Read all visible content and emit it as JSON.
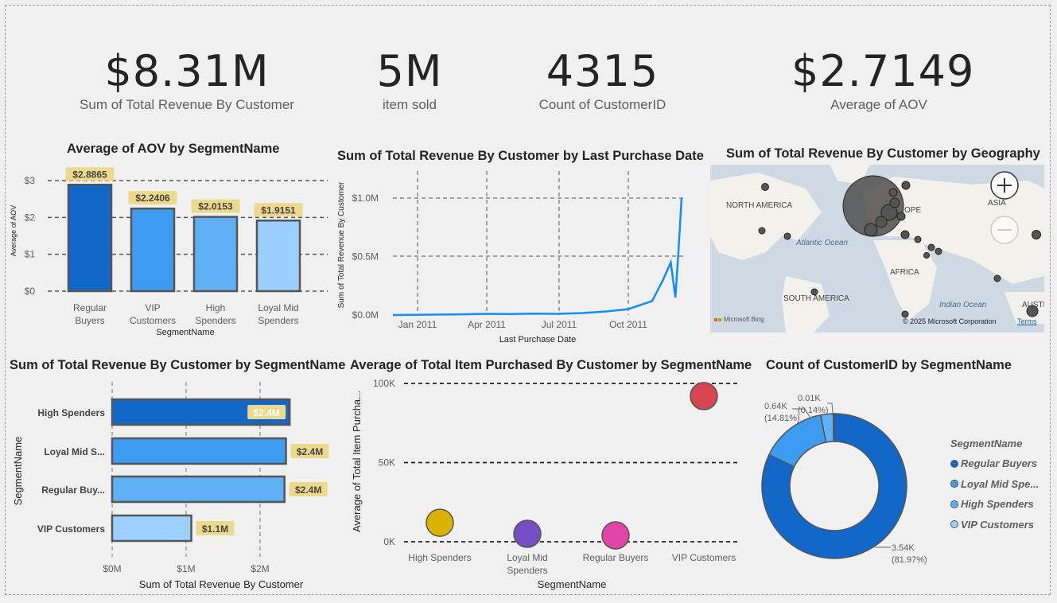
{
  "kpis": [
    {
      "value": "$8.31M",
      "label": "Sum of Total Revenue By Customer"
    },
    {
      "value": "5M",
      "label": "item sold"
    },
    {
      "value": "4315",
      "label": "Count of CustomerID"
    },
    {
      "value": "$2.7149",
      "label": "Average of AOV"
    }
  ],
  "map": {
    "title": "Sum of Total Revenue By Customer by Geography",
    "labels": {
      "north_america": "NORTH AMERICA",
      "atlantic": "Atlantic Ocean",
      "europe": "OPE",
      "asia": "ASIA",
      "africa": "AFRICA",
      "south_america": "SOUTH AMERICA",
      "indian": "Indian Ocean",
      "austr": "AUSTR"
    },
    "attribution": "Microsoft Bing",
    "copyright": "© 2025 Microsoft Corporation",
    "terms": "Terms",
    "zoom_in_icon": "plus-icon",
    "zoom_out_icon": "minus-icon"
  },
  "chart_data": [
    {
      "type": "bar",
      "title": "Average of AOV by SegmentName",
      "xlabel": "SegmentName",
      "ylabel": "Average of AOV",
      "categories": [
        "Regular Buyers",
        "VIP Customers",
        "High Spenders",
        "Loyal Mid Spenders"
      ],
      "values": [
        2.8865,
        2.2406,
        2.0153,
        1.9151
      ],
      "data_labels": [
        "$2.8865",
        "$2.2406",
        "$2.0153",
        "$1.9151"
      ],
      "colors": [
        "#1168c8",
        "#3d9bf0",
        "#5fb0f5",
        "#9ccffc"
      ],
      "yticks": [
        "$0",
        "$1",
        "$2",
        "$3"
      ],
      "ylim": [
        0,
        3
      ]
    },
    {
      "type": "line",
      "title": "Sum of Total Revenue By Customer by Last Purchase Date",
      "xlabel": "Last Purchase Date",
      "ylabel": "Sum of Total Revenue By Customer",
      "xticks": [
        "Jan 2011",
        "Apr 2011",
        "Jul 2011",
        "Oct 2011"
      ],
      "yticks": [
        "$0.0M",
        "$0.5M",
        "$1.0M"
      ],
      "x": [
        "2010-12-01",
        "2011-01-01",
        "2011-02-01",
        "2011-03-01",
        "2011-04-01",
        "2011-05-01",
        "2011-06-01",
        "2011-07-01",
        "2011-08-01",
        "2011-09-01",
        "2011-10-01",
        "2011-11-01",
        "2011-11-15",
        "2011-11-25",
        "2011-12-01",
        "2011-12-05",
        "2011-12-09"
      ],
      "values": [
        0.0,
        0.002,
        0.004,
        0.006,
        0.01,
        0.008,
        0.012,
        0.01,
        0.016,
        0.03,
        0.05,
        0.12,
        0.3,
        0.45,
        0.15,
        0.55,
        1.0
      ],
      "ylim": [
        0,
        1.0
      ],
      "color": "#118dff"
    },
    {
      "type": "bar",
      "orientation": "horizontal",
      "title": "Sum of Total Revenue By Customer by SegmentName",
      "xlabel": "Sum of Total Revenue By Customer",
      "ylabel": "SegmentName",
      "categories": [
        "High Spenders",
        "Loyal Mid S...",
        "Regular Buy...",
        "VIP Customers"
      ],
      "values": [
        2.4,
        2.4,
        2.4,
        1.1
      ],
      "data_labels": [
        "$2.4M",
        "$2.4M",
        "$2.4M",
        "$1.1M"
      ],
      "colors": [
        "#1168c8",
        "#3d9bf0",
        "#5fb0f5",
        "#9ccffc"
      ],
      "xticks": [
        "$0M",
        "$1M",
        "$2M"
      ],
      "xlim": [
        0,
        3
      ]
    },
    {
      "type": "scatter",
      "title": "Average of Total Item Purchased By Customer by SegmentName",
      "xlabel": "SegmentName",
      "ylabel": "Average of Total Item Purcha...",
      "categories": [
        "High Spenders",
        "Loyal Mid Spenders",
        "Regular Buyers",
        "VIP Customers"
      ],
      "values": [
        12000,
        5000,
        4000,
        92000
      ],
      "colors": [
        "#d9b300",
        "#744ec2",
        "#e044a7",
        "#d64550"
      ],
      "yticks": [
        "0K",
        "50K",
        "100K"
      ],
      "ylim": [
        0,
        100000
      ]
    },
    {
      "type": "pie",
      "title": "Count of CustomerID by SegmentName",
      "legend_title": "SegmentName",
      "labels": [
        "Regular Buyers",
        "Loyal Mid Spe...",
        "High Spenders",
        "VIP Customers"
      ],
      "values": [
        3.54,
        0.64,
        0.12,
        0.01
      ],
      "slice_labels": [
        [
          "3.54K",
          "(81.97%)"
        ],
        [
          "0.64K",
          "(14.81%)"
        ],
        [
          "",
          ""
        ],
        [
          "0.01K",
          "(0.14%)"
        ]
      ],
      "colors": [
        "#1168c8",
        "#3d9bf0",
        "#5fb0f5",
        "#9ccffc"
      ],
      "legend_placement": "right"
    }
  ]
}
